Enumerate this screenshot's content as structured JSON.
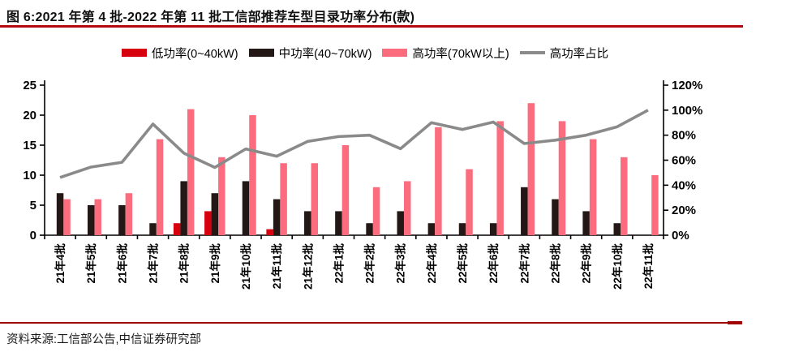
{
  "header": {
    "title": "图 6:2021 年第 4 批-2022 年第 11 批工信部推荐车型目录功率分布(款)"
  },
  "footer": {
    "source": "资料来源:工信部公告,中信证券研究部"
  },
  "colors": {
    "title_rule": "#b50710",
    "bottom_rule": "#a00000",
    "low_power": "#d7000f",
    "mid_power": "#231815",
    "high_power": "#fb6d7e",
    "ratio_line": "#8a8a8a"
  },
  "chart_data": {
    "type": "bar",
    "subtype": "grouped-bars-with-line-overlay",
    "grid": "off",
    "legend_position": "top-center",
    "categories": [
      "21年4批",
      "21年5批",
      "21年6批",
      "21年7批",
      "21年8批",
      "21年9批",
      "21年10批",
      "21年11批",
      "21年12批",
      "22年1批",
      "22年2批",
      "22年3批",
      "22年4批",
      "22年5批",
      "22年6批",
      "22年7批",
      "22年8批",
      "22年9批",
      "22年10批",
      "22年11批"
    ],
    "series": [
      {
        "name": "低功率(0~40kW)",
        "color": "#d7000f",
        "axis": "left",
        "values": [
          0,
          0,
          0,
          0,
          2,
          4,
          0,
          1,
          0,
          0,
          0,
          0,
          0,
          0,
          0,
          0,
          0,
          0,
          0,
          0
        ]
      },
      {
        "name": "中功率(40~70kW)",
        "color": "#231815",
        "axis": "left",
        "values": [
          7,
          5,
          5,
          2,
          9,
          7,
          9,
          6,
          4,
          4,
          2,
          4,
          2,
          2,
          2,
          8,
          6,
          4,
          2,
          0
        ]
      },
      {
        "name": "高功率(70kW以上)",
        "color": "#fb6d7e",
        "axis": "left",
        "values": [
          6,
          6,
          7,
          16,
          21,
          13,
          20,
          12,
          12,
          15,
          8,
          9,
          18,
          11,
          19,
          22,
          19,
          16,
          13,
          10
        ]
      }
    ],
    "line_series": {
      "name": "高功率占比",
      "color": "#8a8a8a",
      "axis": "right",
      "values_pct": [
        46.2,
        54.5,
        58.3,
        88.9,
        65.6,
        54.2,
        69.0,
        63.2,
        75.0,
        78.9,
        80.0,
        69.2,
        90.0,
        84.6,
        90.5,
        73.3,
        76.0,
        80.0,
        86.7,
        100.0
      ]
    },
    "left_axis": {
      "min": 0,
      "max": 25,
      "step": 5,
      "ticks": [
        "0",
        "5",
        "10",
        "15",
        "20",
        "25"
      ]
    },
    "right_axis": {
      "min": 0,
      "max": 120,
      "step": 20,
      "ticks": [
        "0%",
        "20%",
        "40%",
        "60%",
        "80%",
        "100%",
        "120%"
      ]
    }
  }
}
